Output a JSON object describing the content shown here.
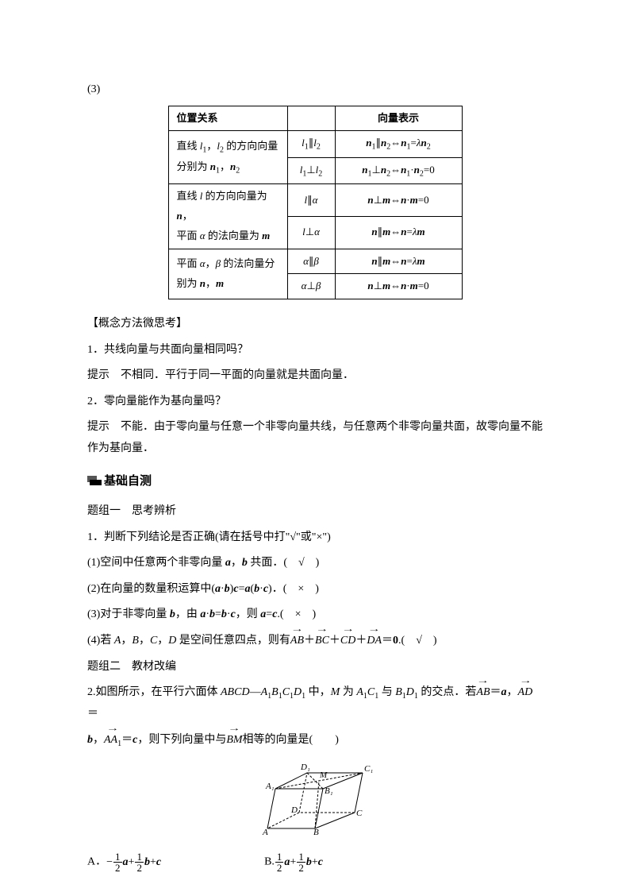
{
  "label3": "(3)",
  "table": {
    "header": [
      "位置关系",
      "",
      "向量表示"
    ],
    "rows": [
      {
        "desc_lines": [
          "直线 <span class='it'>l</span><span class='sub'>1</span>，<span class='it'>l</span><span class='sub'>2</span> 的方向向量",
          "分别为 <span class='bi'>n</span><span class='sub'>1</span>，<span class='bi'>n</span><span class='sub'>2</span>"
        ],
        "cells": [
          [
            "<span class='it'>l</span><span class='sub'>1</span>∥<span class='it'>l</span><span class='sub'>2</span>",
            "<span class='bi'>n</span><span class='sub'>1</span>∥<span class='bi'>n</span><span class='sub'>2</span>⇔<span class='bi'>n</span><span class='sub'>1</span>=<span class='it'>λ</span><span class='bi'>n</span><span class='sub'>2</span>"
          ],
          [
            "<span class='it'>l</span><span class='sub'>1</span>⊥<span class='it'>l</span><span class='sub'>2</span>",
            "<span class='bi'>n</span><span class='sub'>1</span>⊥<span class='bi'>n</span><span class='sub'>2</span>⇔<span class='bi'>n</span><span class='sub'>1</span>·<span class='bi'>n</span><span class='sub'>2</span>=0"
          ]
        ]
      },
      {
        "desc_lines": [
          "直线 <span class='it'>l</span> 的方向向量为 <span class='bi'>n</span>，",
          "平面 <span class='it'>α</span> 的法向量为 <span class='bi'>m</span>"
        ],
        "cells": [
          [
            "<span class='it'>l</span>∥<span class='it'>α</span>",
            "<span class='bi'>n</span>⊥<span class='bi'>m</span>⇔<span class='bi'>n</span>·<span class='bi'>m</span>=0"
          ],
          [
            "<span class='it'>l</span>⊥<span class='it'>α</span>",
            "<span class='bi'>n</span>∥<span class='bi'>m</span>⇔<span class='bi'>n</span>=<span class='it'>λ</span><span class='bi'>m</span>"
          ]
        ]
      },
      {
        "desc_lines": [
          "平面 <span class='it'>α</span>，<span class='it'>β</span> 的法向量分",
          "别为 <span class='bi'>n</span>，<span class='bi'>m</span>"
        ],
        "cells": [
          [
            "<span class='it'>α</span>∥<span class='it'>β</span>",
            "<span class='bi'>n</span>∥<span class='bi'>m</span>⇔<span class='bi'>n</span>=<span class='it'>λ</span><span class='bi'>m</span>"
          ],
          [
            "<span class='it'>α</span>⊥<span class='it'>β</span>",
            "<span class='bi'>n</span>⊥<span class='bi'>m</span>⇔<span class='bi'>n</span>·<span class='bi'>m</span>=0"
          ]
        ]
      }
    ]
  },
  "concept_head": "【概念方法微思考】",
  "q1": "1．共线向量与共面向量相同吗？",
  "a1": "提示　不相同．平行于同一平面的向量就是共面向量．",
  "q2": "2．零向量能作为基向量吗？",
  "a2": "提示　不能．由于零向量与任意一个非零向量共线，与任意两个非零向量共面，故零向量不能作为基向量．",
  "section_basic": "基础自测",
  "group1": "题组一　思考辨析",
  "judge_intro": "1．判断下列结论是否正确(请在括号中打\"√\"或\"×\")",
  "j1": "(1)空间中任意两个非零向量 <span class='bi'>a</span>，<span class='bi'>b</span> 共面．(　√　)",
  "j2": "(2)在向量的数量积运算中(<span class='bi'>a</span>·<span class='bi'>b</span>)<span class='bi'>c</span>=<span class='bi'>a</span>(<span class='bi'>b</span>·<span class='bi'>c</span>)．(　×　)",
  "j3": "(3)对于非零向量 <span class='bi'>b</span>，由 <span class='bi'>a</span>·<span class='bi'>b</span>=<span class='bi'>b</span>·<span class='bi'>c</span>，则 <span class='bi'>a</span>=<span class='bi'>c</span>.(　×　)",
  "j4": "(4)若 <span class='it'>A</span>，<span class='it'>B</span>，<span class='it'>C</span>，<span class='it'>D</span> 是空间任意四点，则有<span class='vec'><span class='it'>AB</span></span>＋<span class='vec'><span class='it'>BC</span></span>＋<span class='vec'><span class='it'>CD</span></span>＋<span class='vec'><span class='it'>DA</span></span>＝<b>0</b>.(　√　)",
  "group2": "题组二　教材改编",
  "p2": "2.如图所示，在平行六面体 <span class='it'>ABCD</span>—<span class='it'>A</span><span class='sub'>1</span><span class='it'>B</span><span class='sub'>1</span><span class='it'>C</span><span class='sub'>1</span><span class='it'>D</span><span class='sub'>1</span> 中，<span class='it'>M</span> 为 <span class='it'>A</span><span class='sub'>1</span><span class='it'>C</span><span class='sub'>1</span> 与 <span class='it'>B</span><span class='sub'>1</span><span class='it'>D</span><span class='sub'>1</span> 的交点．若<span class='vec'><span class='it'>AB</span></span>＝<span class='bi'>a</span>，<span class='vec'><span class='it'>AD</span></span>＝",
  "p2b": "<span class='bi'>b</span>，<span class='vec'><span class='it'>AA</span><span class='sub'>1</span></span>＝<span class='bi'>c</span>，则下列向量中与<span class='vec'><span class='it'>BM</span></span>相等的向量是(　　)",
  "figure": {
    "labels": {
      "A": "A",
      "B": "B",
      "C": "C",
      "D": "D",
      "A1": "A₁",
      "B1": "B₁",
      "C1": "C₁",
      "D1": "D₁",
      "M": "M"
    },
    "stroke": "#000000",
    "dash": "3,2"
  },
  "choiceA": "A．",
  "choiceA_expr": "−<span class='frac'><span class='n'>1</span><span class='d'>2</span></span><span class='bi'>a</span>+<span class='frac'><span class='n'>1</span><span class='d'>2</span></span><span class='bi'>b</span>+<span class='bi'>c</span>",
  "choiceB": "B.",
  "choiceB_expr": "<span class='frac'><span class='n'>1</span><span class='d'>2</span></span><span class='bi'>a</span>+<span class='frac'><span class='n'>1</span><span class='d'>2</span></span><span class='bi'>b</span>+<span class='bi'>c</span>"
}
